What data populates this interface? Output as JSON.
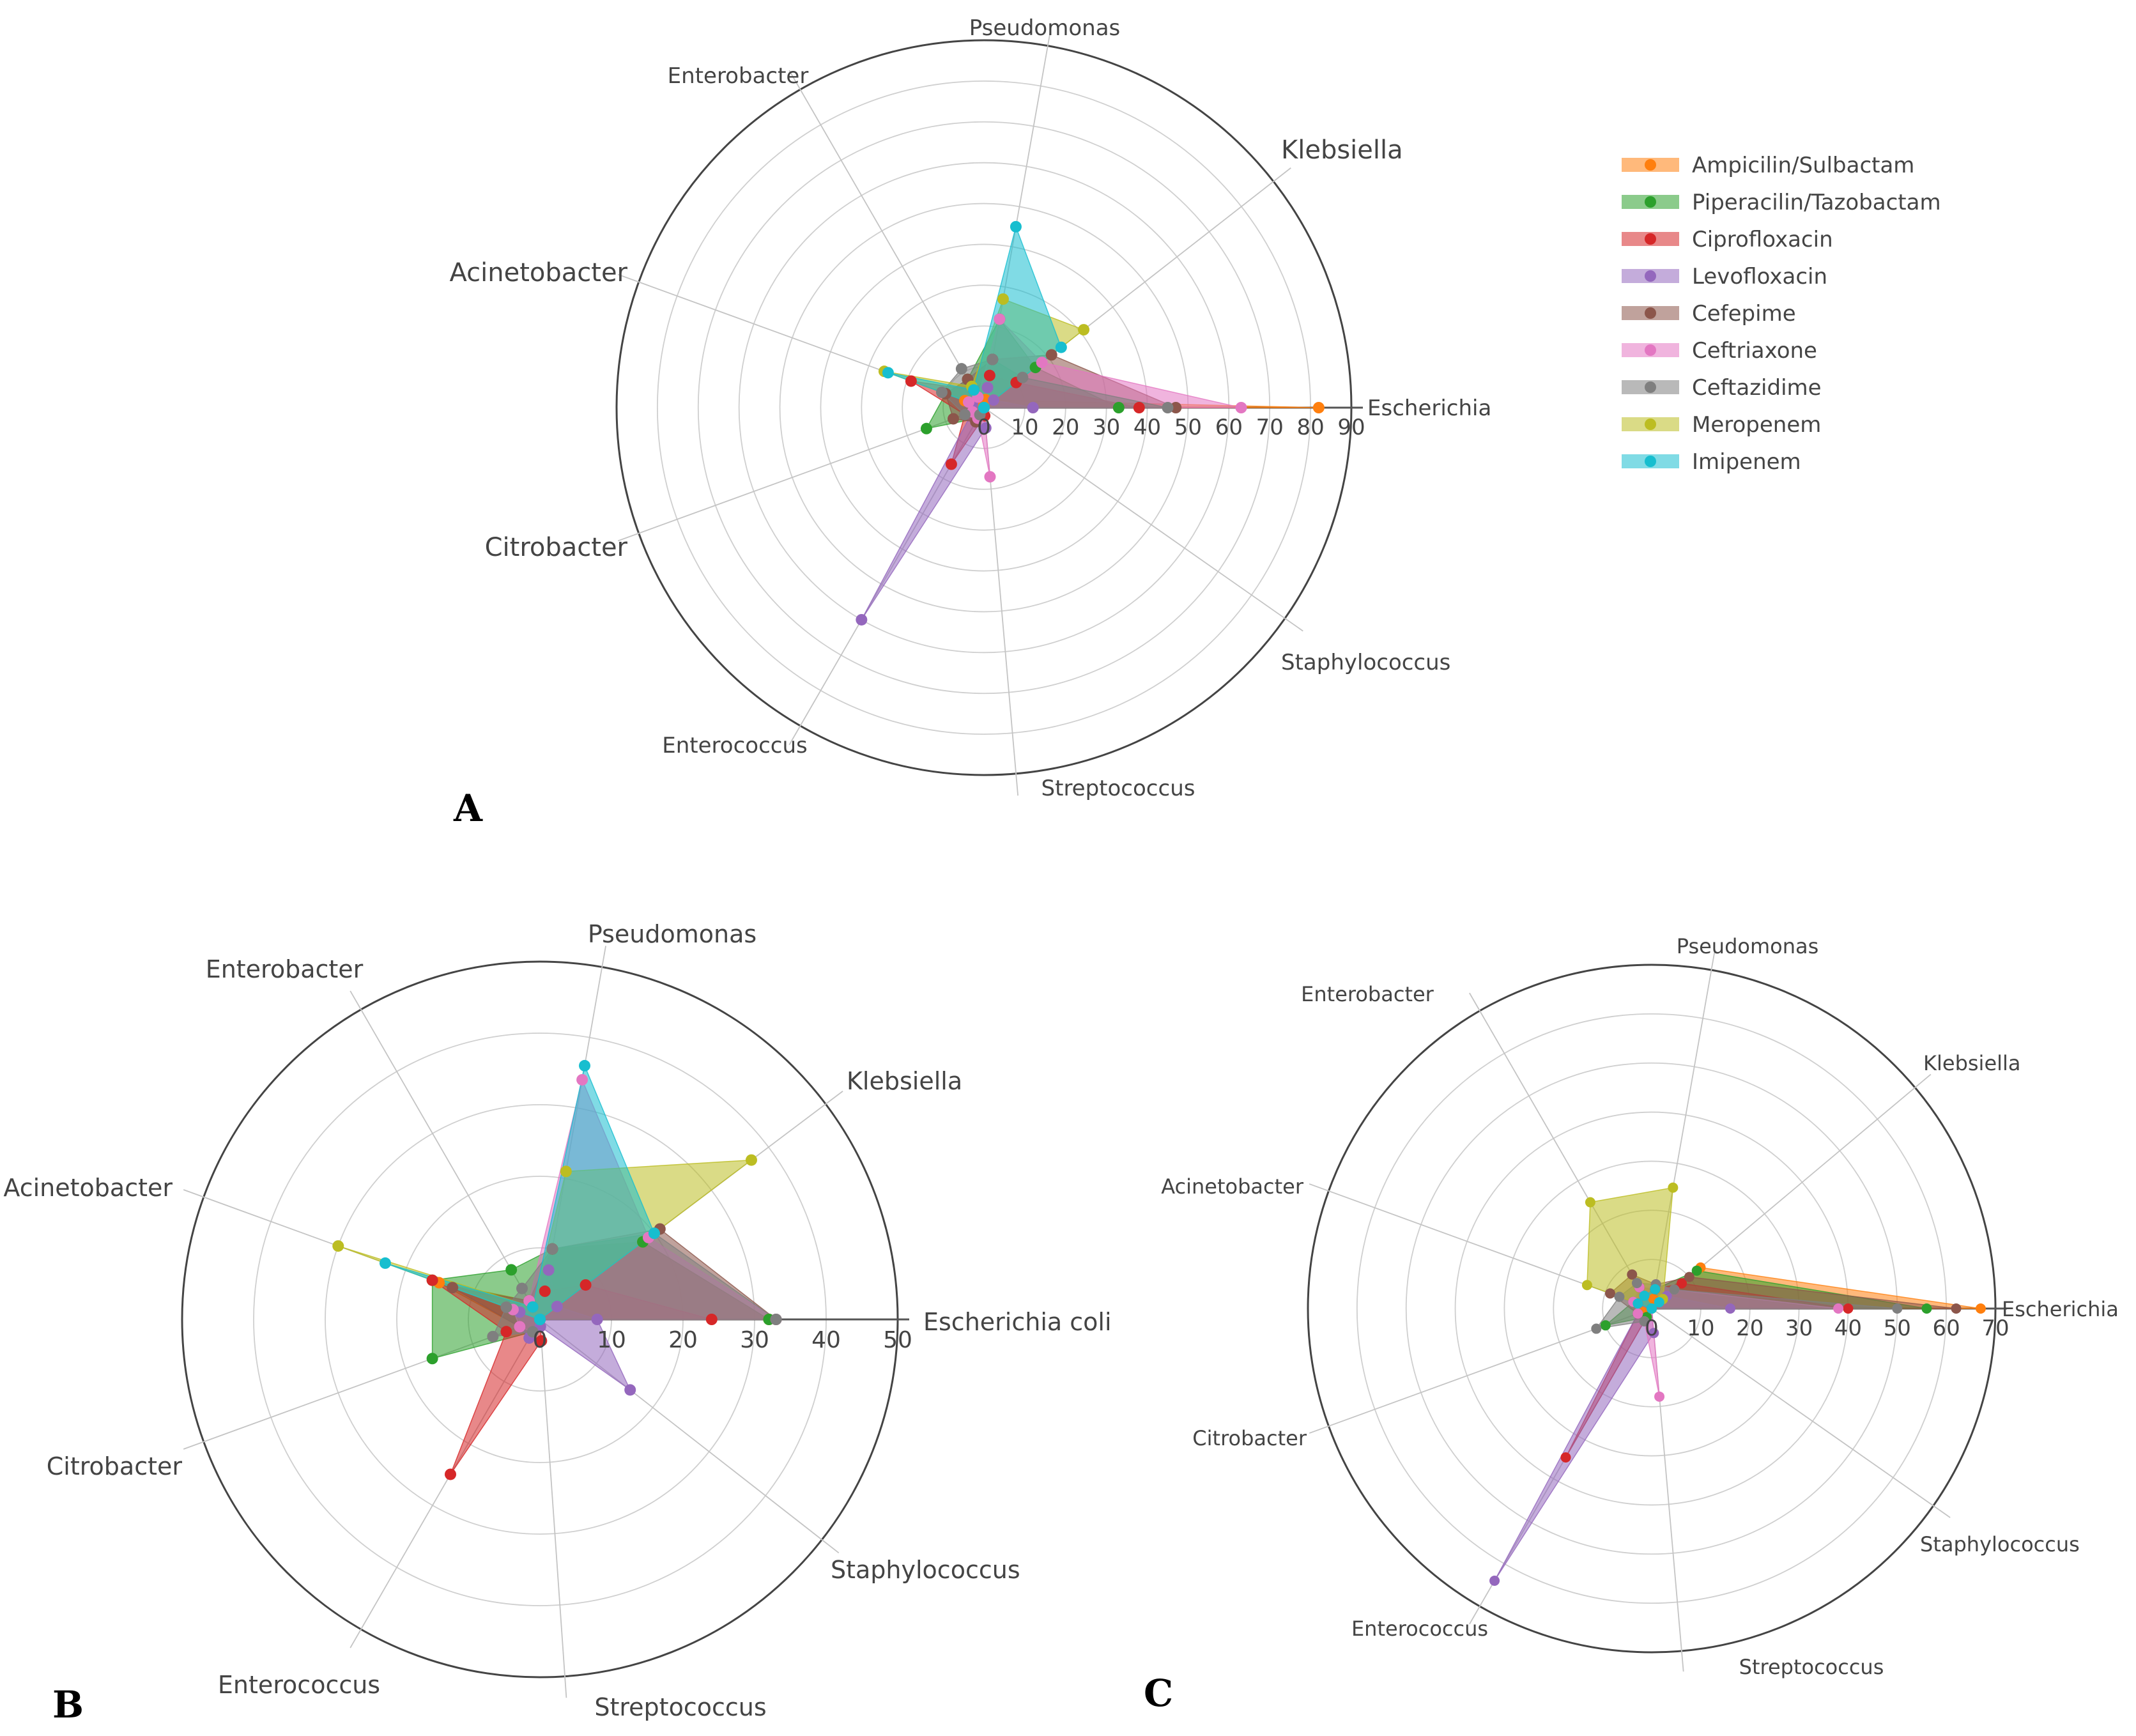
{
  "panels": {
    "A": "A",
    "B": "B",
    "C": "C"
  },
  "legend": [
    {
      "name": "Ampicilin/Sulbactam",
      "color": "#ff7f0e"
    },
    {
      "name": "Piperacilin/Tazobactam",
      "color": "#2ca02c"
    },
    {
      "name": "Ciprofloxacin",
      "color": "#d62728"
    },
    {
      "name": "Levofloxacin",
      "color": "#9467bd"
    },
    {
      "name": "Cefepime",
      "color": "#8c564b"
    },
    {
      "name": "Ceftriaxone",
      "color": "#e377c2"
    },
    {
      "name": "Ceftazidime",
      "color": "#7f7f7f"
    },
    {
      "name": "Meropenem",
      "color": "#bcbd22"
    },
    {
      "name": "Imipenem",
      "color": "#17becf"
    }
  ],
  "chart_data": [
    {
      "panel": "A",
      "type": "radar",
      "categories": [
        "Escherichia",
        "Klebsiella",
        "Pseudomonas",
        "Enterobacter",
        "Acinetobacter",
        "Citrobacter",
        "Enterococcus",
        "Streptococcus",
        "Staphylococcus"
      ],
      "rlim": [
        0,
        90
      ],
      "ticks": [
        "0",
        "10",
        "20",
        "30",
        "40",
        "50",
        "60",
        "70",
        "80",
        "90"
      ],
      "series": [
        {
          "name": "Ampicilin/Sulbactam",
          "values": [
            82,
            3,
            2,
            2,
            5,
            3,
            2,
            0,
            0
          ]
        },
        {
          "name": "Piperacilin/Tazobactam",
          "values": [
            33,
            16,
            22,
            8,
            10,
            15,
            3,
            0,
            0
          ]
        },
        {
          "name": "Ciprofloxacin",
          "values": [
            38,
            10,
            8,
            5,
            19,
            5,
            16,
            2,
            0
          ]
        },
        {
          "name": "Levofloxacin",
          "values": [
            12,
            3,
            5,
            3,
            3,
            3,
            60,
            5,
            0
          ]
        },
        {
          "name": "Cefepime",
          "values": [
            47,
            21,
            12,
            8,
            10,
            8,
            4,
            0,
            0
          ]
        },
        {
          "name": "Ceftriaxone",
          "values": [
            63,
            18,
            22,
            3,
            4,
            3,
            3,
            17,
            0
          ]
        },
        {
          "name": "Ceftazidime",
          "values": [
            45,
            12,
            12,
            11,
            11,
            5,
            2,
            0,
            0
          ]
        },
        {
          "name": "Meropenem",
          "values": [
            0,
            31,
            27,
            6,
            26,
            0,
            0,
            0,
            0
          ]
        },
        {
          "name": "Imipenem",
          "values": [
            0,
            24,
            45,
            5,
            25,
            0,
            0,
            0,
            0
          ]
        }
      ]
    },
    {
      "panel": "B",
      "type": "radar",
      "categories": [
        "Escherichia coli",
        "Klebsiella",
        "Pseudomonas",
        "Enterobacter",
        "Acinetobacter",
        "Citrobacter",
        "Enterococcus",
        "Streptococcus",
        "Staphylococcus"
      ],
      "rlim": [
        0,
        50
      ],
      "ticks": [
        "0",
        "10",
        "20",
        "30",
        "40",
        "50"
      ],
      "series": [
        {
          "name": "Ampicilin/Sulbactam",
          "values": [
            32,
            18,
            10,
            3,
            15,
            3,
            2,
            0,
            0
          ]
        },
        {
          "name": "Piperacilin/Tazobactam",
          "values": [
            32,
            18,
            10,
            8,
            16,
            16,
            2,
            0,
            0
          ]
        },
        {
          "name": "Ciprofloxacin",
          "values": [
            24,
            8,
            4,
            2,
            16,
            5,
            25,
            3,
            0
          ]
        },
        {
          "name": "Levofloxacin",
          "values": [
            8,
            3,
            7,
            2,
            3,
            3,
            3,
            1,
            16
          ]
        },
        {
          "name": "Cefepime",
          "values": [
            33,
            21,
            10,
            3,
            13,
            3,
            2,
            0,
            0
          ]
        },
        {
          "name": "Ceftriaxone",
          "values": [
            33,
            19,
            34,
            3,
            4,
            3,
            2,
            0,
            0
          ]
        },
        {
          "name": "Ceftazidime",
          "values": [
            33,
            20,
            10,
            5,
            5,
            7,
            2,
            0,
            0
          ]
        },
        {
          "name": "Meropenem",
          "values": [
            0,
            37,
            21,
            2,
            30,
            0,
            0,
            0,
            0
          ]
        },
        {
          "name": "Imipenem",
          "values": [
            0,
            20,
            36,
            2,
            23,
            0,
            0,
            0,
            0
          ]
        }
      ]
    },
    {
      "panel": "C",
      "type": "radar",
      "categories": [
        "Escherichia",
        "Klebsiella",
        "Pseudomonas",
        "Enterobacter",
        "Acinetobacter",
        "Citrobacter",
        "Enterococcus",
        "Streptococcus",
        "Staphylococcus"
      ],
      "rlim": [
        0,
        70
      ],
      "ticks": [
        "0",
        "10",
        "20",
        "30",
        "40",
        "50",
        "60",
        "70"
      ],
      "series": [
        {
          "name": "Ampicilin/Sulbactam",
          "values": [
            67,
            13,
            2,
            3,
            3,
            2,
            2,
            0,
            0
          ]
        },
        {
          "name": "Piperacilin/Tazobactam",
          "values": [
            56,
            12,
            4,
            5,
            4,
            10,
            2,
            0,
            0
          ]
        },
        {
          "name": "Ciprofloxacin",
          "values": [
            40,
            8,
            4,
            5,
            3,
            3,
            35,
            0,
            0
          ]
        },
        {
          "name": "Levofloxacin",
          "values": [
            16,
            4,
            5,
            3,
            3,
            3,
            64,
            5,
            0
          ]
        },
        {
          "name": "Cefepime",
          "values": [
            62,
            10,
            5,
            8,
            9,
            3,
            3,
            0,
            0
          ]
        },
        {
          "name": "Ceftriaxone",
          "values": [
            38,
            6,
            5,
            5,
            4,
            3,
            3,
            18,
            0
          ]
        },
        {
          "name": "Ceftazidime",
          "values": [
            50,
            6,
            5,
            6,
            7,
            12,
            3,
            0,
            0
          ]
        },
        {
          "name": "Meropenem",
          "values": [
            0,
            3,
            25,
            25,
            14,
            0,
            0,
            0,
            0
          ]
        },
        {
          "name": "Imipenem",
          "values": [
            0,
            2,
            4,
            3,
            3,
            0,
            0,
            0,
            0
          ]
        }
      ]
    }
  ]
}
